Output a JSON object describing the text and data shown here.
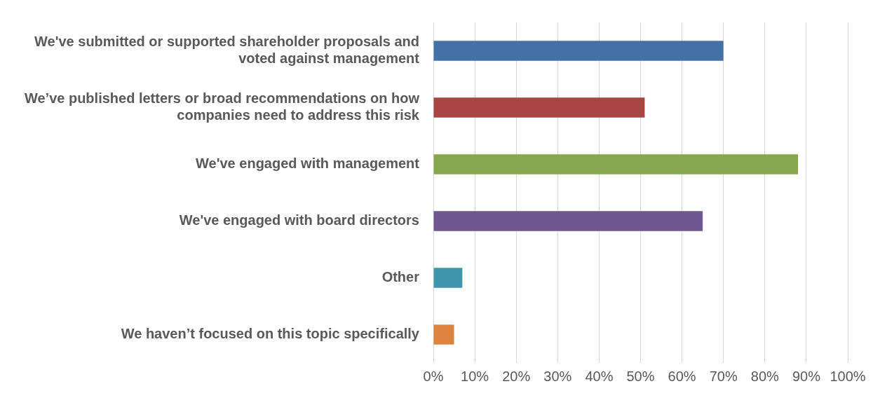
{
  "chart_data": {
    "type": "bar",
    "orientation": "horizontal",
    "categories": [
      "We've submitted or supported shareholder proposals and voted against management",
      "We’ve published letters or broad recommendations on how companies need to address this risk",
      "We've engaged with management",
      "We've engaged with board directors",
      "Other",
      "We haven’t focused on this topic specifically"
    ],
    "values": [
      70,
      51,
      88,
      65,
      7,
      5
    ],
    "colors": [
      "#4472a8",
      "#a94543",
      "#88a64e",
      "#6f578f",
      "#3f97ae",
      "#dc833d"
    ],
    "xlim": [
      0,
      100
    ],
    "xticks": [
      {
        "value": 0,
        "label": "0%"
      },
      {
        "value": 10,
        "label": "10%"
      },
      {
        "value": 20,
        "label": "20%"
      },
      {
        "value": 30,
        "label": "30%"
      },
      {
        "value": 40,
        "label": "40%"
      },
      {
        "value": 50,
        "label": "50%"
      },
      {
        "value": 60,
        "label": "60%"
      },
      {
        "value": 70,
        "label": "70%"
      },
      {
        "value": 80,
        "label": "80%"
      },
      {
        "value": 90,
        "label": "90%"
      },
      {
        "value": 100,
        "label": "100%"
      }
    ],
    "grid": "x",
    "legend": false
  }
}
